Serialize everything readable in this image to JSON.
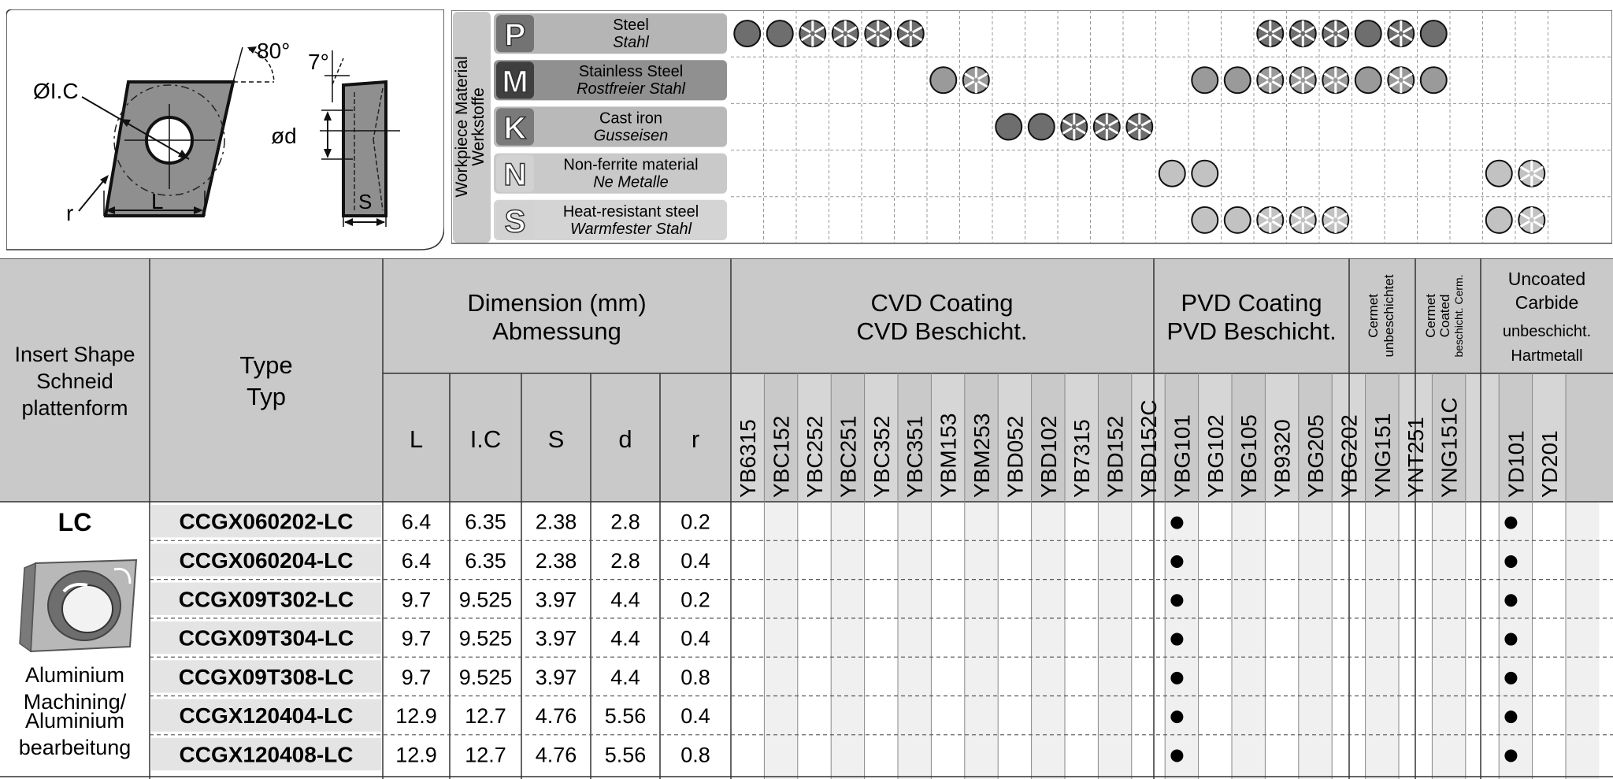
{
  "diagram": {
    "angle_80": "80°",
    "angle_7": "7°",
    "label_ic": "ØI.C",
    "label_d": "ød",
    "label_r": "r",
    "label_L": "L",
    "label_S": "S"
  },
  "materials": {
    "group_title_line1": "Workpiece Material",
    "group_title_line2": "Werkstoffe",
    "colors": {
      "P": "#b5b5b5",
      "M": "#909090",
      "K": "#b9b9b9",
      "N": "#c9c9c9",
      "S": "#d4d4d4"
    },
    "rows": [
      {
        "code": "P",
        "name": "Steel",
        "name_de": "Stahl",
        "icon_color": "#737373"
      },
      {
        "code": "M",
        "name": "Stainless Steel",
        "name_de": "Rostfreier Stahl",
        "icon_color": "#3f3f3f"
      },
      {
        "code": "K",
        "name": "Cast iron",
        "name_de": "Gusseisen",
        "icon_color": "#7a7a7a"
      },
      {
        "code": "N",
        "name": "Non-ferrite material",
        "name_de": "Ne Metalle",
        "icon_color": "#d2d2d2"
      },
      {
        "code": "S",
        "name": "Heat-resistant steel",
        "name_de": "Warmfester Stahl",
        "icon_color": "#d2d2d2"
      }
    ],
    "dot_legend": {
      "full": "full circle",
      "split": "segmented circle"
    },
    "dots": [
      [
        {
          "c": 0,
          "t": "full",
          "f": "#6e6e6e"
        },
        {
          "c": 1,
          "t": "full",
          "f": "#6e6e6e"
        },
        {
          "c": 2,
          "t": "split",
          "f": "#6e6e6e"
        },
        {
          "c": 3,
          "t": "split",
          "f": "#6e6e6e"
        },
        {
          "c": 4,
          "t": "split",
          "f": "#6e6e6e"
        },
        {
          "c": 5,
          "t": "split",
          "f": "#6e6e6e"
        },
        {
          "c": 16,
          "t": "split",
          "f": "#6e6e6e"
        },
        {
          "c": 17,
          "t": "split",
          "f": "#6e6e6e"
        },
        {
          "c": 18,
          "t": "split",
          "f": "#6e6e6e"
        },
        {
          "c": 19,
          "t": "full",
          "f": "#6e6e6e"
        },
        {
          "c": 20,
          "t": "split",
          "f": "#6e6e6e"
        },
        {
          "c": 21,
          "t": "full",
          "f": "#6e6e6e"
        }
      ],
      [
        {
          "c": 6,
          "t": "full",
          "f": "#9a9a9a"
        },
        {
          "c": 7,
          "t": "split",
          "f": "#9a9a9a"
        },
        {
          "c": 14,
          "t": "full",
          "f": "#9a9a9a"
        },
        {
          "c": 15,
          "t": "full",
          "f": "#9a9a9a"
        },
        {
          "c": 16,
          "t": "split",
          "f": "#9a9a9a"
        },
        {
          "c": 17,
          "t": "split",
          "f": "#9a9a9a"
        },
        {
          "c": 18,
          "t": "split",
          "f": "#9a9a9a"
        },
        {
          "c": 19,
          "t": "full",
          "f": "#9a9a9a"
        },
        {
          "c": 20,
          "t": "split",
          "f": "#9a9a9a"
        },
        {
          "c": 21,
          "t": "full",
          "f": "#9a9a9a"
        }
      ],
      [
        {
          "c": 8,
          "t": "full",
          "f": "#6e6e6e"
        },
        {
          "c": 9,
          "t": "full",
          "f": "#6e6e6e"
        },
        {
          "c": 10,
          "t": "split",
          "f": "#6e6e6e"
        },
        {
          "c": 11,
          "t": "split",
          "f": "#6e6e6e"
        },
        {
          "c": 12,
          "t": "split",
          "f": "#6e6e6e"
        }
      ],
      [
        {
          "c": 13,
          "t": "full",
          "f": "#c2c2c2"
        },
        {
          "c": 14,
          "t": "full",
          "f": "#c2c2c2"
        },
        {
          "c": 23,
          "t": "full",
          "f": "#c2c2c2"
        },
        {
          "c": 24,
          "t": "split",
          "f": "#c2c2c2"
        }
      ],
      [
        {
          "c": 14,
          "t": "full",
          "f": "#c2c2c2"
        },
        {
          "c": 15,
          "t": "full",
          "f": "#c2c2c2"
        },
        {
          "c": 16,
          "t": "split",
          "f": "#c2c2c2"
        },
        {
          "c": 17,
          "t": "split",
          "f": "#c2c2c2"
        },
        {
          "c": 18,
          "t": "split",
          "f": "#c2c2c2"
        },
        {
          "c": 23,
          "t": "full",
          "f": "#c2c2c2"
        },
        {
          "c": 24,
          "t": "split",
          "f": "#c2c2c2"
        }
      ]
    ]
  },
  "table": {
    "header": {
      "insert_shape": [
        "Insert Shape",
        "Schneid",
        "plattenform"
      ],
      "type": [
        "Type",
        "Typ"
      ],
      "dimension": [
        "Dimension (mm)",
        "Abmessung"
      ],
      "cvd": [
        "CVD Coating",
        "CVD Beschicht."
      ],
      "pvd": [
        "PVD Coating",
        "PVD Beschicht."
      ],
      "cermet": [
        "Cermet",
        "unbeschichtet"
      ],
      "cermet_coated": [
        "Cermet",
        "Coated",
        "beschicht. Cerm."
      ],
      "uncoated": [
        "Uncoated",
        "Carbide",
        "unbeschicht.",
        "Hartmetall"
      ],
      "dims": [
        "L",
        "I.C",
        "S",
        "d",
        "r"
      ]
    },
    "grades": [
      "YB6315",
      "YBC152",
      "YBC252",
      "YBC251",
      "YBC352",
      "YBC351",
      "YBM153",
      "YBM253",
      "YBD052",
      "YBD102",
      "YB7315",
      "YBD152",
      "YBD152C",
      "YBG101",
      "YBG102",
      "YBG105",
      "YB9320",
      "YBG205",
      "YBG202",
      "YNG151",
      "YNT251",
      "YNG151C",
      "",
      "YD101",
      "YD201",
      ""
    ],
    "shape": {
      "code": "LC",
      "desc": [
        "Aluminium",
        "Machining/",
        "Aluminium",
        "bearbeitung"
      ]
    },
    "available_grades": [
      "YBG101",
      "YD101"
    ],
    "rows": [
      {
        "type": "CCGX060202-LC",
        "L": "6.4",
        "IC": "6.35",
        "S": "2.38",
        "d": "2.8",
        "r": "0.2"
      },
      {
        "type": "CCGX060204-LC",
        "L": "6.4",
        "IC": "6.35",
        "S": "2.38",
        "d": "2.8",
        "r": "0.4"
      },
      {
        "type": "CCGX09T302-LC",
        "L": "9.7",
        "IC": "9.525",
        "S": "3.97",
        "d": "4.4",
        "r": "0.2"
      },
      {
        "type": "CCGX09T304-LC",
        "L": "9.7",
        "IC": "9.525",
        "S": "3.97",
        "d": "4.4",
        "r": "0.4"
      },
      {
        "type": "CCGX09T308-LC",
        "L": "9.7",
        "IC": "9.525",
        "S": "3.97",
        "d": "4.4",
        "r": "0.8"
      },
      {
        "type": "CCGX120404-LC",
        "L": "12.9",
        "IC": "12.7",
        "S": "4.76",
        "d": "5.56",
        "r": "0.4"
      },
      {
        "type": "CCGX120408-LC",
        "L": "12.9",
        "IC": "12.7",
        "S": "4.76",
        "d": "5.56",
        "r": "0.8"
      }
    ]
  }
}
